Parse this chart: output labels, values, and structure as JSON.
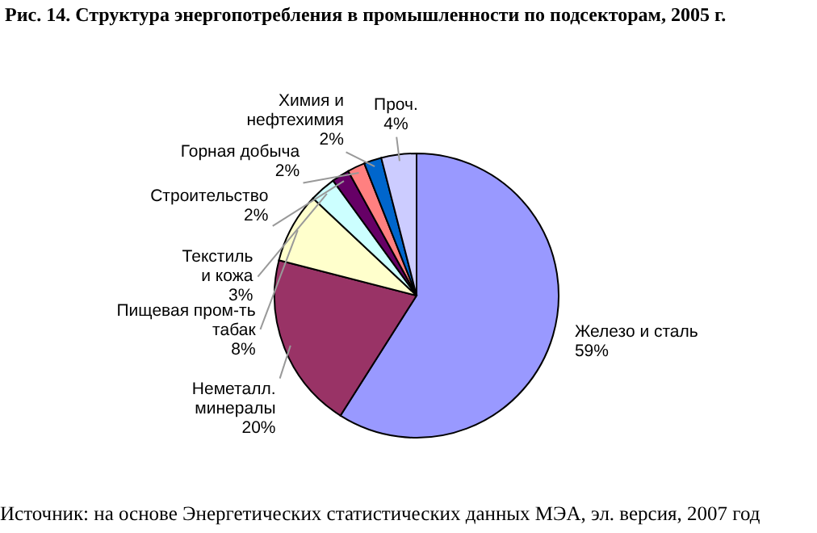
{
  "chart_data": {
    "type": "pie",
    "title": "Рис. 14. Структура энергопотребления в промышленности по подсекторам, 2005 г.",
    "categories": [
      "Железо и сталь",
      "Неметалл.\nминералы",
      "Пищевая пром-ть\nтабак",
      "Текстиль\nи кожа",
      "Строительство",
      "Горная добыча",
      "Химия и\nнефтехимия",
      "Проч."
    ],
    "values": [
      59,
      20,
      8,
      3,
      2,
      2,
      2,
      4
    ],
    "value_labels": [
      "59%",
      "20%",
      "8%",
      "3%",
      "2%",
      "2%",
      "2%",
      "4%"
    ],
    "colors": [
      "#9999ff",
      "#993366",
      "#ffffcc",
      "#ccffff",
      "#660066",
      "#ff8080",
      "#0066cc",
      "#ccccff"
    ],
    "legend": false,
    "annotations": [
      "Источник: на основе Энергетических статистических данных МЭА, эл. версия, 2007 год"
    ]
  }
}
